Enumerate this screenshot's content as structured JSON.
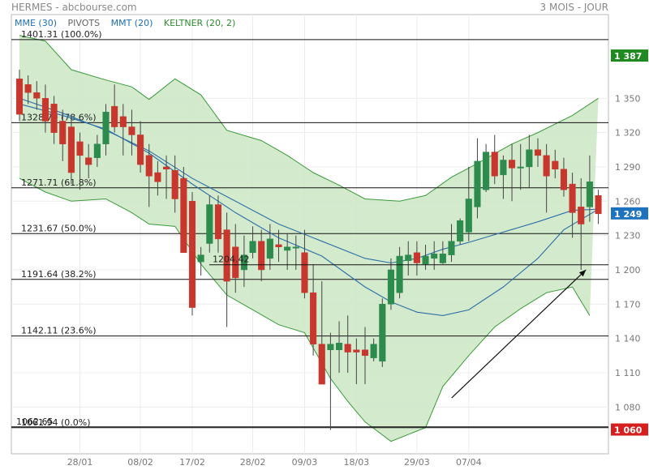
{
  "header": {
    "title": "HERMES - abcbourse.com",
    "period": "3 MOIS - JOUR"
  },
  "legend": [
    {
      "label": "MME (30)",
      "color": "#1f6fb5"
    },
    {
      "label": "PIVOTS",
      "color": "#666666"
    },
    {
      "label": "MMT (20)",
      "color": "#1f6fb5"
    },
    {
      "label": "KELTNER (20, 2)",
      "color": "#2e8b2e"
    }
  ],
  "colors": {
    "up": "#2e8b4e",
    "down": "#c8372d",
    "channel_fill": "#cfe8c8",
    "channel_line": "#3a9a3a",
    "ma": "#2a6fa8"
  },
  "chart_data": {
    "type": "candlestick",
    "ylim": [
      1045,
      1420
    ],
    "yticks": [
      1080,
      1110,
      1140,
      1170,
      1200,
      1230,
      1260,
      1290,
      1320,
      1350
    ],
    "x_labels": [
      {
        "label": "28/01",
        "index": 7
      },
      {
        "label": "08/02",
        "index": 14
      },
      {
        "label": "17/02",
        "index": 20
      },
      {
        "label": "28/02",
        "index": 27
      },
      {
        "label": "09/03",
        "index": 33
      },
      {
        "label": "18/03",
        "index": 39
      },
      {
        "label": "29/03",
        "index": 46
      },
      {
        "label": "07/04",
        "index": 52
      }
    ],
    "candles": [
      [
        1367,
        1375,
        1330,
        1336
      ],
      [
        1362,
        1370,
        1345,
        1355
      ],
      [
        1355,
        1365,
        1340,
        1350
      ],
      [
        1350,
        1362,
        1320,
        1330
      ],
      [
        1345,
        1352,
        1310,
        1320
      ],
      [
        1330,
        1340,
        1295,
        1310
      ],
      [
        1325,
        1335,
        1275,
        1285
      ],
      [
        1312,
        1320,
        1270,
        1300
      ],
      [
        1298,
        1310,
        1280,
        1292
      ],
      [
        1298,
        1318,
        1290,
        1310
      ],
      [
        1310,
        1345,
        1300,
        1338
      ],
      [
        1343,
        1362,
        1320,
        1325
      ],
      [
        1334,
        1345,
        1300,
        1325
      ],
      [
        1325,
        1340,
        1300,
        1318
      ],
      [
        1318,
        1330,
        1285,
        1292
      ],
      [
        1300,
        1310,
        1255,
        1282
      ],
      [
        1285,
        1295,
        1265,
        1277
      ],
      [
        1290,
        1300,
        1262,
        1288
      ],
      [
        1287,
        1300,
        1250,
        1262
      ],
      [
        1280,
        1290,
        1215,
        1215
      ],
      [
        1260,
        1268,
        1160,
        1167
      ],
      [
        1207,
        1220,
        1195,
        1213
      ],
      [
        1223,
        1265,
        1215,
        1257
      ],
      [
        1257,
        1265,
        1215,
        1227
      ],
      [
        1235,
        1250,
        1150,
        1190
      ],
      [
        1220,
        1240,
        1180,
        1193
      ],
      [
        1200,
        1230,
        1185,
        1213
      ],
      [
        1215,
        1238,
        1210,
        1225
      ],
      [
        1225,
        1235,
        1190,
        1200
      ],
      [
        1210,
        1240,
        1200,
        1227
      ],
      [
        1222,
        1235,
        1207,
        1220
      ],
      [
        1217,
        1232,
        1200,
        1220
      ],
      [
        1220,
        1230,
        1200,
        1220
      ],
      [
        1215,
        1235,
        1175,
        1180
      ],
      [
        1180,
        1205,
        1125,
        1135
      ],
      [
        1135,
        1190,
        1100,
        1100
      ],
      [
        1130,
        1145,
        1060,
        1135
      ],
      [
        1130,
        1155,
        1110,
        1136
      ],
      [
        1135,
        1160,
        1110,
        1128
      ],
      [
        1130,
        1140,
        1100,
        1128
      ],
      [
        1130,
        1150,
        1100,
        1125
      ],
      [
        1123,
        1140,
        1120,
        1135
      ],
      [
        1120,
        1175,
        1115,
        1170
      ],
      [
        1170,
        1210,
        1165,
        1200
      ],
      [
        1180,
        1220,
        1175,
        1212
      ],
      [
        1208,
        1225,
        1195,
        1213
      ],
      [
        1215,
        1225,
        1195,
        1206
      ],
      [
        1205,
        1222,
        1200,
        1212
      ],
      [
        1210,
        1225,
        1200,
        1214
      ],
      [
        1206,
        1225,
        1205,
        1214
      ],
      [
        1213,
        1240,
        1207,
        1225
      ],
      [
        1225,
        1245,
        1222,
        1243
      ],
      [
        1233,
        1290,
        1225,
        1262
      ],
      [
        1255,
        1315,
        1245,
        1295
      ],
      [
        1270,
        1310,
        1268,
        1303
      ],
      [
        1303,
        1318,
        1275,
        1282
      ],
      [
        1283,
        1300,
        1262,
        1296
      ],
      [
        1296,
        1310,
        1260,
        1289
      ],
      [
        1289,
        1310,
        1270,
        1290
      ],
      [
        1290,
        1318,
        1272,
        1305
      ],
      [
        1305,
        1315,
        1290,
        1300
      ],
      [
        1300,
        1310,
        1250,
        1282
      ],
      [
        1295,
        1305,
        1280,
        1288
      ],
      [
        1288,
        1298,
        1264,
        1270
      ],
      [
        1275,
        1285,
        1228,
        1250
      ],
      [
        1255,
        1280,
        1200,
        1240
      ],
      [
        1255,
        1300,
        1242,
        1277
      ],
      [
        1265,
        1270,
        1240,
        1249
      ]
    ],
    "mme30": [
      [
        0,
        1350
      ],
      [
        5,
        1337
      ],
      [
        10,
        1322
      ],
      [
        15,
        1304
      ],
      [
        20,
        1280
      ],
      [
        25,
        1260
      ],
      [
        30,
        1240
      ],
      [
        35,
        1225
      ],
      [
        40,
        1210
      ],
      [
        43,
        1206
      ],
      [
        46,
        1210
      ],
      [
        49,
        1218
      ],
      [
        52,
        1224
      ],
      [
        56,
        1233
      ],
      [
        60,
        1242
      ],
      [
        64,
        1252
      ],
      [
        67,
        1253
      ]
    ],
    "mmt20": [
      [
        0,
        1345
      ],
      [
        5,
        1335
      ],
      [
        10,
        1323
      ],
      [
        15,
        1302
      ],
      [
        20,
        1275
      ],
      [
        25,
        1250
      ],
      [
        30,
        1228
      ],
      [
        35,
        1212
      ],
      [
        40,
        1185
      ],
      [
        43,
        1172
      ],
      [
        46,
        1163
      ],
      [
        49,
        1160
      ],
      [
        52,
        1165
      ],
      [
        56,
        1185
      ],
      [
        60,
        1210
      ],
      [
        63,
        1235
      ],
      [
        67,
        1253
      ]
    ],
    "keltner_upper": [
      [
        0,
        1405
      ],
      [
        3,
        1400
      ],
      [
        6,
        1375
      ],
      [
        10,
        1366
      ],
      [
        13,
        1360
      ],
      [
        15,
        1349
      ],
      [
        18,
        1367
      ],
      [
        21,
        1353
      ],
      [
        24,
        1322
      ],
      [
        28,
        1313
      ],
      [
        31,
        1300
      ],
      [
        34,
        1285
      ],
      [
        37,
        1274
      ],
      [
        40,
        1262
      ],
      [
        44,
        1260
      ],
      [
        47,
        1265
      ],
      [
        50,
        1281
      ],
      [
        53,
        1293
      ],
      [
        57,
        1310
      ],
      [
        60,
        1320
      ],
      [
        64,
        1335
      ],
      [
        67,
        1350
      ]
    ],
    "keltner_lower": [
      [
        0,
        1280
      ],
      [
        3,
        1268
      ],
      [
        6,
        1260
      ],
      [
        10,
        1262
      ],
      [
        13,
        1250
      ],
      [
        15,
        1240
      ],
      [
        18,
        1238
      ],
      [
        21,
        1205
      ],
      [
        24,
        1178
      ],
      [
        27,
        1165
      ],
      [
        30,
        1152
      ],
      [
        33,
        1145
      ],
      [
        36,
        1105
      ],
      [
        38,
        1085
      ],
      [
        40,
        1067
      ],
      [
        43,
        1050
      ],
      [
        47,
        1062
      ],
      [
        49,
        1098
      ],
      [
        52,
        1125
      ],
      [
        55,
        1150
      ],
      [
        58,
        1166
      ],
      [
        61,
        1180
      ],
      [
        64,
        1185
      ],
      [
        66,
        1160
      ]
    ],
    "pivot_levels": [
      {
        "label": "1401.31 (100.0%)",
        "value": 1401.31
      },
      {
        "label": "1328.70 (78.6%)",
        "value": 1328.7
      },
      {
        "label": "1271.71 (61.8%)",
        "value": 1271.71
      },
      {
        "label": "1231.67 (50.0%)",
        "value": 1231.67
      },
      {
        "label": "1191.64 (38.2%)",
        "value": 1191.64
      },
      {
        "label": "1142.11 (23.6%)",
        "value": 1142.11
      },
      {
        "label": "1061.94 (0.0%)",
        "value": 1061.94
      },
      {
        "label": "1062.65",
        "value": 1062.65
      }
    ],
    "annotation": {
      "label": "1204.42",
      "value": 1204.42
    },
    "price_flags": [
      {
        "label": "1 387",
        "value": 1387,
        "color": "#1f8a1f"
      },
      {
        "label": "1 249",
        "value": 1249,
        "color": "#1e73be"
      },
      {
        "label": "1 060",
        "value": 1060,
        "color": "#d62020"
      }
    ],
    "trend_arrow": {
      "from": [
        38,
        1088
      ],
      "to": [
        62,
        1200
      ]
    }
  }
}
